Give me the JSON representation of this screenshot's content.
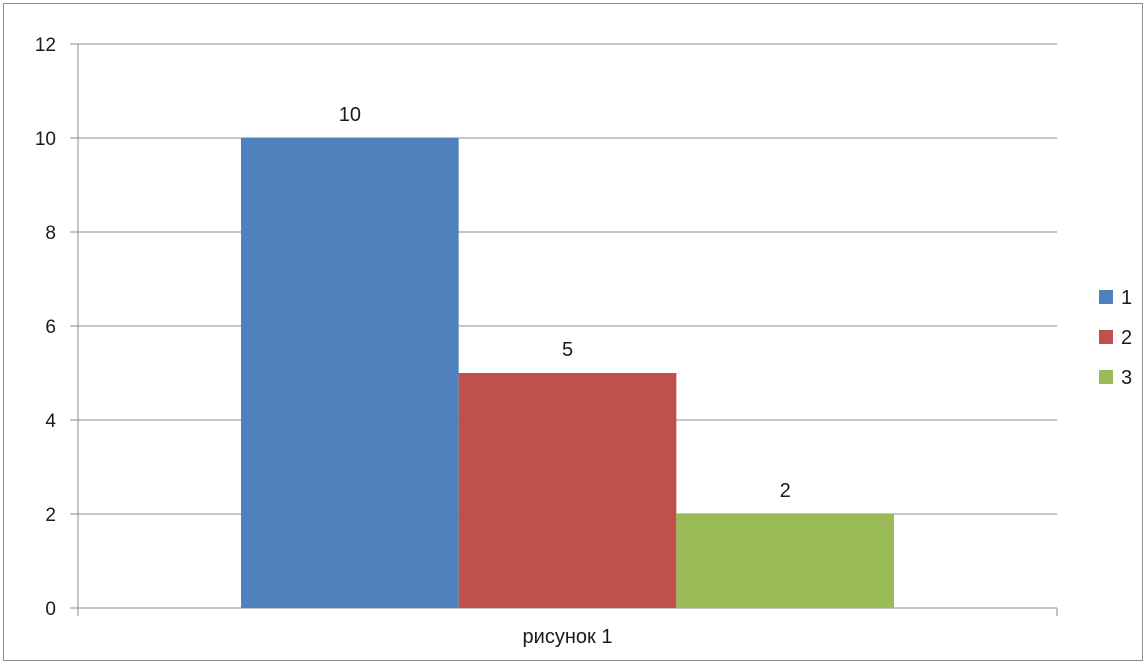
{
  "chart_data": {
    "type": "bar",
    "categories": [
      "рисунок 1"
    ],
    "series": [
      {
        "name": "1",
        "values": [
          10
        ],
        "color": "#4f81bd"
      },
      {
        "name": "2",
        "values": [
          5
        ],
        "color": "#c0504d"
      },
      {
        "name": "3",
        "values": [
          2
        ],
        "color": "#9bbb59"
      }
    ],
    "ylim": [
      0,
      12
    ],
    "yticks": [
      0,
      2,
      4,
      6,
      8,
      10,
      12
    ],
    "grid": true,
    "legend_position": "right",
    "data_labels": true
  },
  "colors": {
    "gridline": "#8c8c8c",
    "axis": "#8c8c8c",
    "frame": "#8c8c8c"
  }
}
